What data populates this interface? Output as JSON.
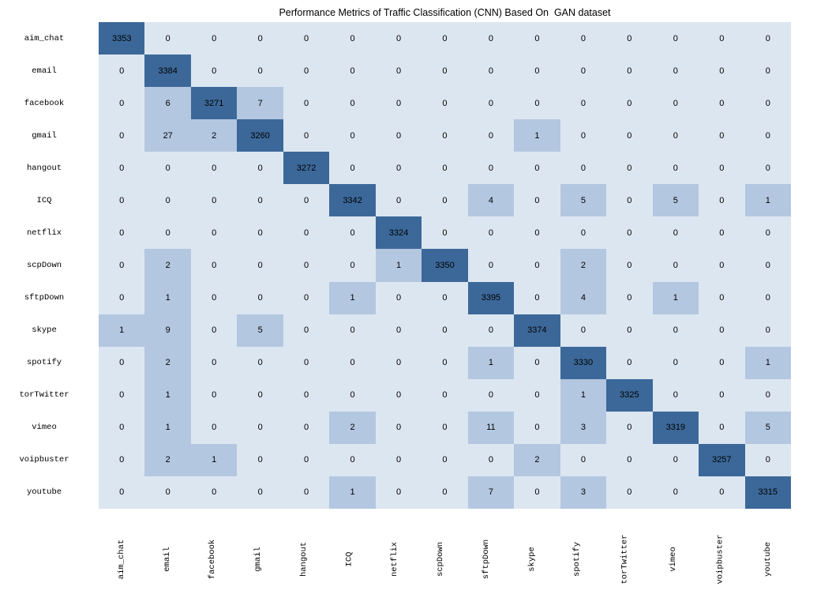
{
  "title": "Performance Metrics of Traffic Classification (CNN) Based On  GAN dataset",
  "chart_data": {
    "type": "heatmap",
    "title": "Performance Metrics of Traffic Classification (CNN) Based On  GAN dataset",
    "classes": [
      "aim_chat",
      "email",
      "facebook",
      "gmail",
      "hangout",
      "ICQ",
      "netflix",
      "scpDown",
      "sftpDown",
      "skype",
      "spotify",
      "torTwitter",
      "vimeo",
      "voipbuster",
      "youtube"
    ],
    "row_labels": [
      "aim_chat",
      "email",
      "facebook",
      "gmail",
      "hangout",
      "ICQ",
      "netflix",
      "scpDown",
      "sftpDown",
      "skype",
      "spotify",
      "torTwitter",
      "vimeo",
      "voipbuster",
      "youtube"
    ],
    "col_labels": [
      "aim_chat",
      "email",
      "facebook",
      "gmail",
      "hangout",
      "ICQ",
      "netflix",
      "scpDown",
      "sftpDown",
      "skype",
      "spotify",
      "torTwitter",
      "vimeo",
      "voipbuster",
      "youtube"
    ],
    "matrix": [
      [
        3353,
        0,
        0,
        0,
        0,
        0,
        0,
        0,
        0,
        0,
        0,
        0,
        0,
        0,
        0
      ],
      [
        0,
        3384,
        0,
        0,
        0,
        0,
        0,
        0,
        0,
        0,
        0,
        0,
        0,
        0,
        0
      ],
      [
        0,
        6,
        3271,
        7,
        0,
        0,
        0,
        0,
        0,
        0,
        0,
        0,
        0,
        0,
        0
      ],
      [
        0,
        27,
        2,
        3260,
        0,
        0,
        0,
        0,
        0,
        1,
        0,
        0,
        0,
        0,
        0
      ],
      [
        0,
        0,
        0,
        0,
        3272,
        0,
        0,
        0,
        0,
        0,
        0,
        0,
        0,
        0,
        0
      ],
      [
        0,
        0,
        0,
        0,
        0,
        3342,
        0,
        0,
        4,
        0,
        5,
        0,
        5,
        0,
        1
      ],
      [
        0,
        0,
        0,
        0,
        0,
        0,
        3324,
        0,
        0,
        0,
        0,
        0,
        0,
        0,
        0
      ],
      [
        0,
        2,
        0,
        0,
        0,
        0,
        1,
        3350,
        0,
        0,
        2,
        0,
        0,
        0,
        0
      ],
      [
        0,
        1,
        0,
        0,
        0,
        1,
        0,
        0,
        3395,
        0,
        4,
        0,
        1,
        0,
        0
      ],
      [
        1,
        9,
        0,
        5,
        0,
        0,
        0,
        0,
        0,
        3374,
        0,
        0,
        0,
        0,
        0
      ],
      [
        0,
        2,
        0,
        0,
        0,
        0,
        0,
        0,
        1,
        0,
        3330,
        0,
        0,
        0,
        1
      ],
      [
        0,
        1,
        0,
        0,
        0,
        0,
        0,
        0,
        0,
        0,
        1,
        3325,
        0,
        0,
        0
      ],
      [
        0,
        1,
        0,
        0,
        0,
        2,
        0,
        0,
        11,
        0,
        3,
        0,
        3319,
        0,
        5
      ],
      [
        0,
        2,
        1,
        0,
        0,
        0,
        0,
        0,
        0,
        2,
        0,
        0,
        0,
        3257,
        0
      ],
      [
        0,
        0,
        0,
        0,
        0,
        1,
        0,
        0,
        7,
        0,
        3,
        0,
        0,
        0,
        3315
      ]
    ],
    "cell_colors": {
      "diagonal": "#3c6899",
      "offdiag_nonzero": "#b4c7e0",
      "zero": "#dce6f1",
      "value_text": "#000000"
    },
    "layout": {
      "grid": false,
      "legend": "none",
      "colorbar": false,
      "col_labels_rotation_deg": 90
    }
  }
}
